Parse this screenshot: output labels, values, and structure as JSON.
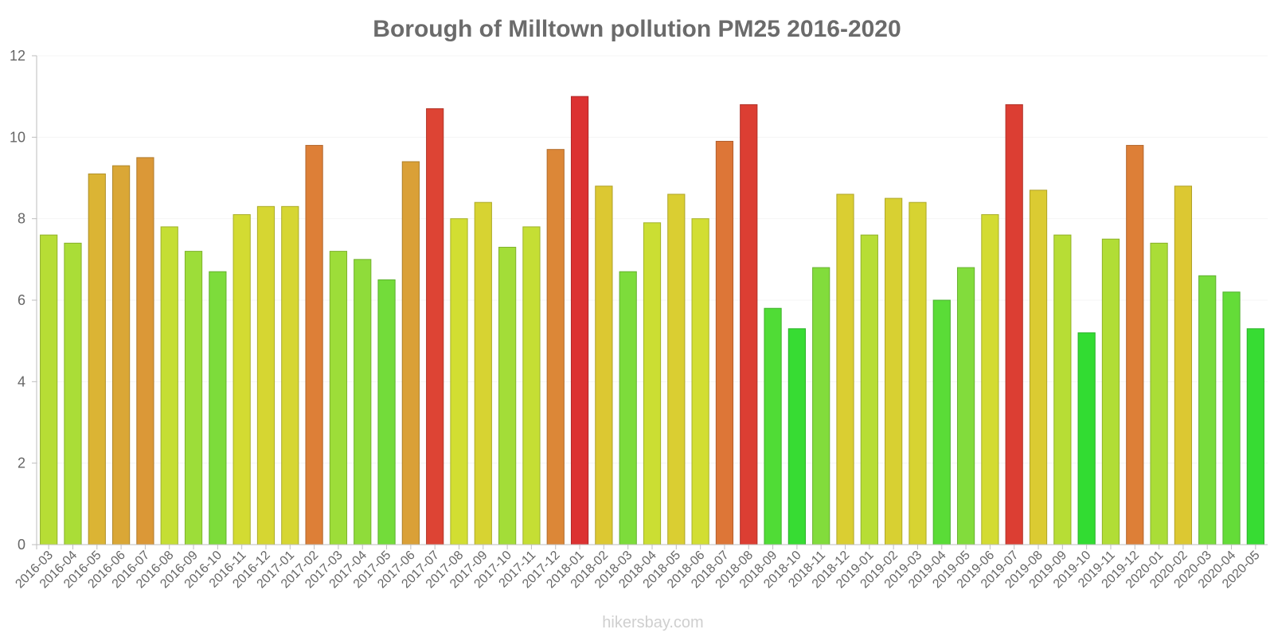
{
  "chart_data": {
    "type": "bar",
    "title": "Borough of Milltown pollution PM25 2016-2020",
    "xlabel": "",
    "ylabel": "",
    "ylim": [
      0,
      12
    ],
    "yticks": [
      0,
      2,
      4,
      6,
      8,
      10,
      12
    ],
    "categories": [
      "2016-03",
      "2016-04",
      "2016-05",
      "2016-06",
      "2016-07",
      "2016-08",
      "2016-09",
      "2016-10",
      "2016-11",
      "2016-12",
      "2017-01",
      "2017-02",
      "2017-03",
      "2017-04",
      "2017-05",
      "2017-06",
      "2017-07",
      "2017-08",
      "2017-09",
      "2017-10",
      "2017-11",
      "2017-12",
      "2018-01",
      "2018-02",
      "2018-03",
      "2018-04",
      "2018-05",
      "2018-06",
      "2018-07",
      "2018-08",
      "2018-09",
      "2018-10",
      "2018-11",
      "2018-12",
      "2019-01",
      "2019-02",
      "2019-03",
      "2019-04",
      "2019-05",
      "2019-06",
      "2019-07",
      "2019-08",
      "2019-09",
      "2019-10",
      "2019-11",
      "2019-12",
      "2020-01",
      "2020-02",
      "2020-03",
      "2020-04",
      "2020-05"
    ],
    "values": [
      7.6,
      7.4,
      9.1,
      9.3,
      9.5,
      7.8,
      7.2,
      6.7,
      8.1,
      8.3,
      8.3,
      9.8,
      7.2,
      7.0,
      6.5,
      9.4,
      10.7,
      8.0,
      8.4,
      7.3,
      7.8,
      9.7,
      11.0,
      8.8,
      6.7,
      7.9,
      8.6,
      8.0,
      9.9,
      10.8,
      5.8,
      5.3,
      6.8,
      8.6,
      7.6,
      8.5,
      8.4,
      6.0,
      6.8,
      8.1,
      10.8,
      8.7,
      7.6,
      5.2,
      7.5,
      9.8,
      7.4,
      8.8,
      6.6,
      6.2,
      5.3
    ],
    "grid": true,
    "legend": "none"
  },
  "watermark": "hikersbay.com"
}
